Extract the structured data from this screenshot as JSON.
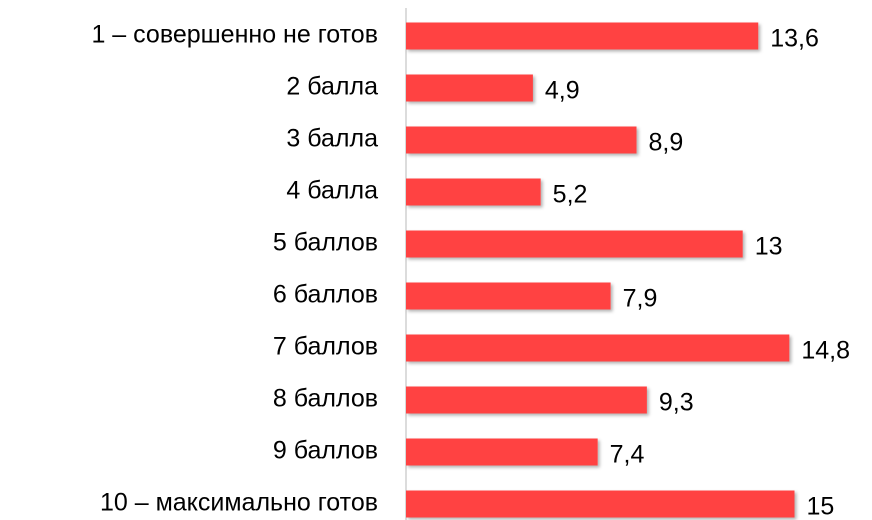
{
  "chart_data": {
    "type": "bar",
    "orientation": "horizontal",
    "categories": [
      "1 – совершенно не готов",
      "2 балла",
      "3 балла",
      "4 балла",
      "5 баллов",
      "6 баллов",
      "7 баллов",
      "8 баллов",
      "9 баллов",
      "10 – максимально готов"
    ],
    "values": [
      13.6,
      4.9,
      8.9,
      5.2,
      13,
      7.9,
      14.8,
      9.3,
      7.4,
      15
    ],
    "value_labels": [
      "13,6",
      "4,9",
      "8,9",
      "5,2",
      "13",
      "7,9",
      "14,8",
      "9,3",
      "7,4",
      "15"
    ],
    "color": "#ff4343"
  }
}
